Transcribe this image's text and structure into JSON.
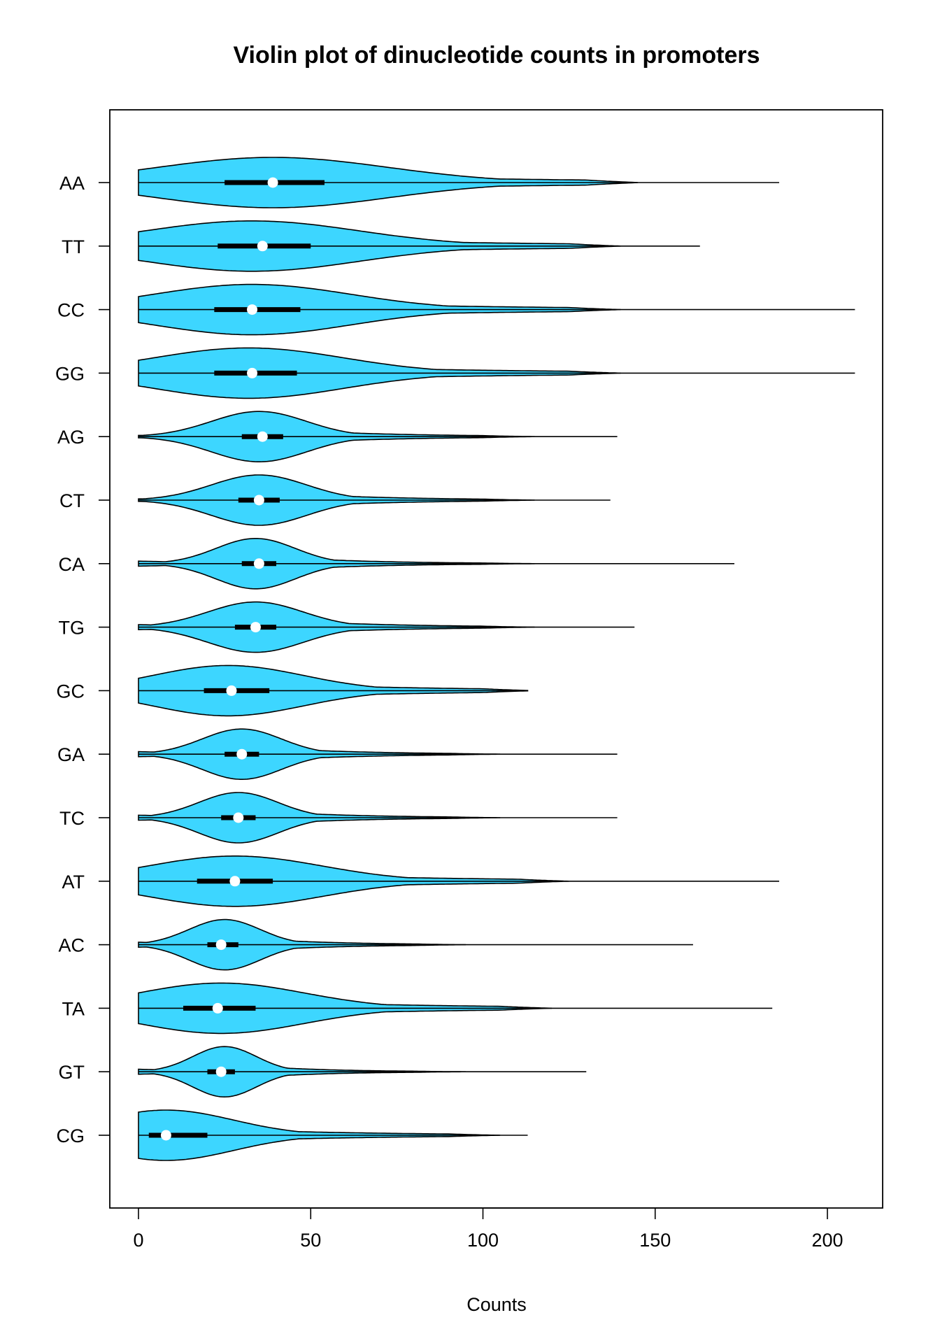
{
  "chart_data": {
    "type": "violin",
    "orientation": "horizontal",
    "title": "Violin plot of dinucleotide counts in promoters",
    "xlabel": "Counts",
    "ylabel": "",
    "xlim": [
      -8,
      216
    ],
    "xticks": [
      0,
      50,
      100,
      150,
      200
    ],
    "fill_color": "#3dd6ff",
    "outline_color": "#000000",
    "median_color": "#ffffff",
    "categories": [
      "AA",
      "TT",
      "CC",
      "GG",
      "AG",
      "CT",
      "CA",
      "TG",
      "GC",
      "GA",
      "TC",
      "AT",
      "AC",
      "TA",
      "GT",
      "CG"
    ],
    "series": [
      {
        "category": "AA",
        "min": 0,
        "q1": 25,
        "median": 39,
        "q3": 54,
        "whisker_high": 98,
        "max": 186,
        "peak": 39,
        "tail_at": 130,
        "widths": {
          "left": 0.3,
          "right": 0.55
        }
      },
      {
        "category": "TT",
        "min": 0,
        "q1": 23,
        "median": 36,
        "q3": 50,
        "whisker_high": 91,
        "max": 163,
        "peak": 33,
        "tail_at": 125,
        "widths": {
          "left": 0.45,
          "right": 0.5
        }
      },
      {
        "category": "CC",
        "min": 0,
        "q1": 22,
        "median": 33,
        "q3": 47,
        "whisker_high": 85,
        "max": 208,
        "peak": 33,
        "tail_at": 125,
        "widths": {
          "left": 0.45,
          "right": 0.55
        }
      },
      {
        "category": "GG",
        "min": 0,
        "q1": 22,
        "median": 33,
        "q3": 46,
        "whisker_high": 82,
        "max": 208,
        "peak": 32,
        "tail_at": 125,
        "widths": {
          "left": 0.4,
          "right": 0.55
        }
      },
      {
        "category": "AG",
        "min": 0,
        "q1": 30,
        "median": 36,
        "q3": 42,
        "whisker_high": 60,
        "max": 139,
        "peak": 35,
        "tail_at": 100,
        "widths": {
          "left": 0.05,
          "right": 0.4
        }
      },
      {
        "category": "CT",
        "min": 0,
        "q1": 29,
        "median": 35,
        "q3": 41,
        "whisker_high": 59,
        "max": 137,
        "peak": 35,
        "tail_at": 100,
        "widths": {
          "left": 0.05,
          "right": 0.4
        }
      },
      {
        "category": "CA",
        "min": 0,
        "q1": 30,
        "median": 35,
        "q3": 40,
        "whisker_high": 55,
        "max": 173,
        "peak": 34,
        "tail_at": 100,
        "widths": {
          "left": 0.1,
          "right": 0.4
        }
      },
      {
        "category": "TG",
        "min": 0,
        "q1": 28,
        "median": 34,
        "q3": 40,
        "whisker_high": 58,
        "max": 144,
        "peak": 34,
        "tail_at": 100,
        "widths": {
          "left": 0.1,
          "right": 0.4
        }
      },
      {
        "category": "GC",
        "min": 0,
        "q1": 19,
        "median": 27,
        "q3": 38,
        "whisker_high": 67,
        "max": 113,
        "peak": 26,
        "tail_at": 100,
        "widths": {
          "left": 0.2,
          "right": 0.45
        }
      },
      {
        "category": "GA",
        "min": 0,
        "q1": 25,
        "median": 30,
        "q3": 35,
        "whisker_high": 50,
        "max": 139,
        "peak": 30,
        "tail_at": 90,
        "widths": {
          "left": 0.1,
          "right": 0.4
        }
      },
      {
        "category": "TC",
        "min": 0,
        "q1": 24,
        "median": 29,
        "q3": 34,
        "whisker_high": 49,
        "max": 139,
        "peak": 29,
        "tail_at": 90,
        "widths": {
          "left": 0.1,
          "right": 0.4
        }
      },
      {
        "category": "AT",
        "min": 0,
        "q1": 17,
        "median": 28,
        "q3": 39,
        "whisker_high": 72,
        "max": 186,
        "peak": 28,
        "tail_at": 110,
        "widths": {
          "left": 0.25,
          "right": 0.5
        }
      },
      {
        "category": "AC",
        "min": 0,
        "q1": 20,
        "median": 24,
        "q3": 29,
        "whisker_high": 43,
        "max": 161,
        "peak": 25,
        "tail_at": 80,
        "widths": {
          "left": 0.1,
          "right": 0.4
        }
      },
      {
        "category": "TA",
        "min": 0,
        "q1": 13,
        "median": 23,
        "q3": 34,
        "whisker_high": 66,
        "max": 184,
        "peak": 24,
        "tail_at": 105,
        "widths": {
          "left": 0.3,
          "right": 0.5
        }
      },
      {
        "category": "GT",
        "min": 0,
        "q1": 20,
        "median": 24,
        "q3": 28,
        "whisker_high": 40,
        "max": 130,
        "peak": 25,
        "tail_at": 80,
        "widths": {
          "left": 0.1,
          "right": 0.4
        }
      },
      {
        "category": "CG",
        "min": 0,
        "q1": 3,
        "median": 8,
        "q3": 20,
        "whisker_high": 46,
        "max": 113,
        "peak": 8,
        "tail_at": 90,
        "widths": {
          "left": 0.3,
          "right": 0.5
        }
      }
    ]
  }
}
